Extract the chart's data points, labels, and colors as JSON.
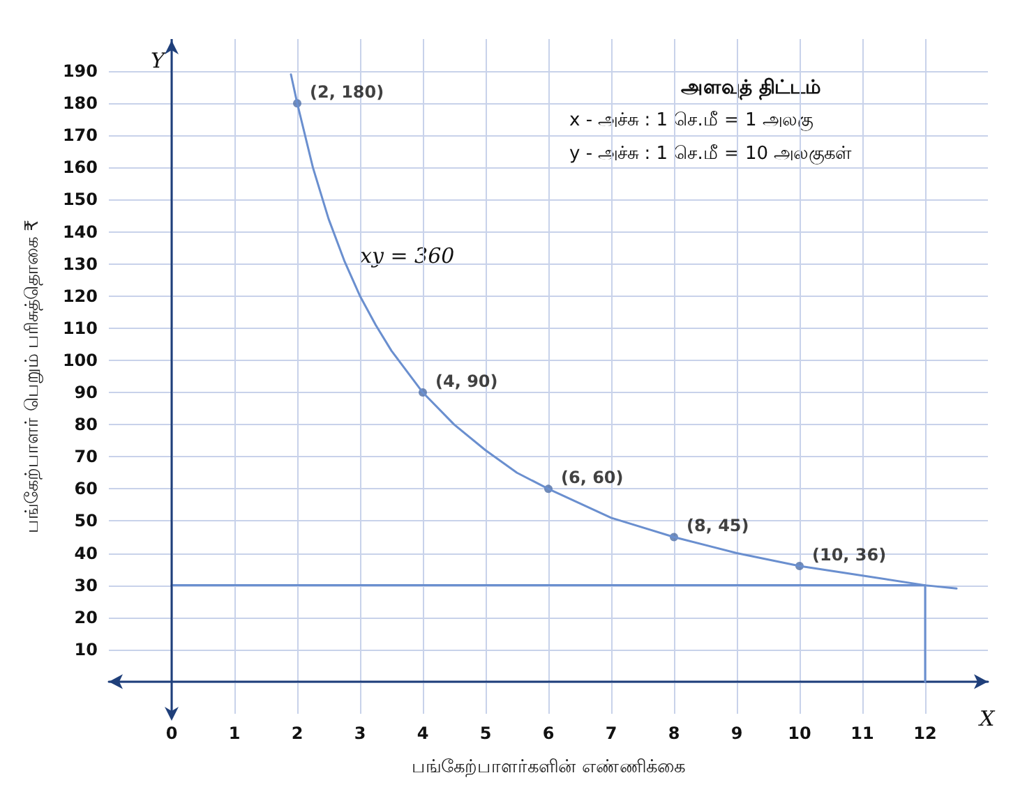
{
  "chart_data": {
    "type": "line",
    "xlabel": "பங்கேற்பாளர்களின் எண்ணிக்கை",
    "ylabel": "பங்கேற்பாளர் பெறும் பரிசுத்தொகை ₹",
    "annotations": [
      "xy = 360",
      "X",
      "Y",
      "அளவுத் திட்டம்",
      "x - அச்சு : 1 செ.மீ = 1 அலகு",
      "y - அச்சு : 1 செ.மீ = 10 அலகுகள்"
    ],
    "xlim": [
      -1,
      13
    ],
    "ylim": [
      -10,
      200
    ],
    "xticks": [
      0,
      1,
      2,
      3,
      4,
      5,
      6,
      7,
      8,
      9,
      10,
      11,
      12
    ],
    "yticks": [
      {
        "value": 0,
        "label": null
      },
      10,
      20,
      30,
      40,
      50,
      60,
      70,
      80,
      90,
      100,
      110,
      120,
      130,
      140,
      150,
      160,
      170,
      180,
      190
    ],
    "grid": true,
    "ref_lines": [
      {
        "axis": "x",
        "value": 0,
        "color": "#1f3f7a"
      }
    ],
    "series": [
      {
        "color": "#6a8fcf",
        "marker": "none",
        "line_style": "solid",
        "x": [
          1.9,
          2,
          2.25,
          2.5,
          2.75,
          3,
          3.25,
          3.5,
          4,
          4.5,
          5,
          5.5,
          6,
          7,
          8,
          9,
          10,
          11,
          12,
          12.5
        ],
        "values": [
          189,
          180,
          160,
          144,
          131,
          120,
          111,
          103,
          90,
          80,
          72,
          65,
          60,
          51,
          45,
          40,
          36,
          33,
          30,
          29
        ]
      },
      {
        "type": "scatter",
        "color": "#4f6fa8",
        "marker": "circle",
        "x": [
          2,
          4,
          6,
          8,
          10
        ],
        "values": [
          180,
          90,
          60,
          45,
          36
        ],
        "value_labels": [
          "(2, 180)",
          "(4, 90)",
          "(6, 60)",
          "(8, 45)",
          "(10, 36)"
        ]
      },
      {
        "color": "#6a8fcf",
        "marker": "none",
        "line_style": "solid",
        "x": [
          0,
          12,
          12
        ],
        "values": [
          30,
          30,
          0
        ]
      }
    ]
  }
}
